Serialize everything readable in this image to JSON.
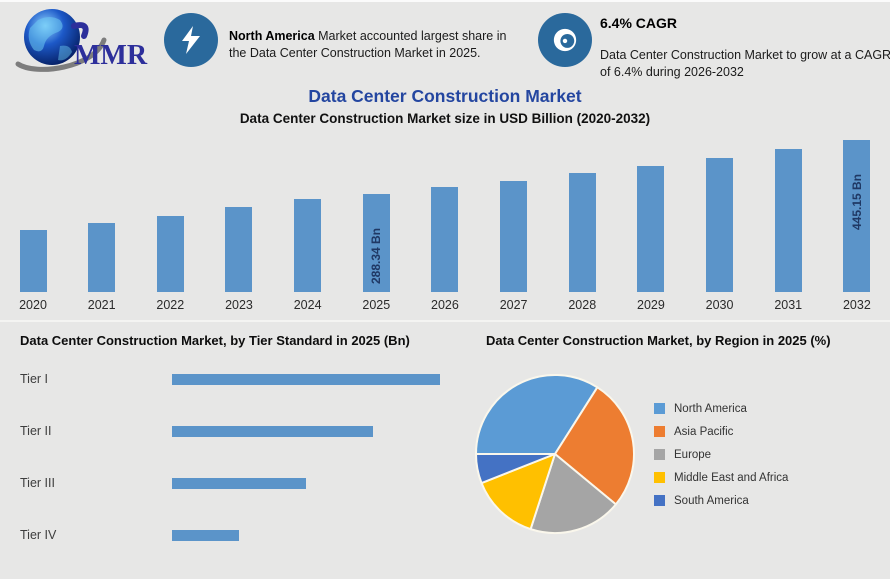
{
  "header": {
    "logo": {
      "text": "MMR"
    },
    "callout_left": {
      "icon": "lightning-icon",
      "bold_text": "North America",
      "text": " Market accounted largest share in the Data Center Construction Market in 2025."
    },
    "callout_right": {
      "icon": "swirl-icon",
      "title": "6.4% CAGR",
      "text": "Data Center Construction Market to grow at a CAGR of 6.4% during 2026-2032"
    }
  },
  "main_title": "Data Center Construction Market",
  "subtitle": "Data Center Construction Market size in USD Billion (2020-2032)",
  "colors": {
    "background": "#e7e7e6",
    "accent_bar_blue": "#5b94c9",
    "title_navy": "#2446a0",
    "data_label_navy": "#1f3864",
    "icon_circle_blue": "#2a699c"
  },
  "chart_data": [
    {
      "type": "bar",
      "title": "Data Center Construction Market size in USD Billion (2020-2032)",
      "categories": [
        "2020",
        "2021",
        "2022",
        "2023",
        "2024",
        "2025",
        "2026",
        "2027",
        "2028",
        "2029",
        "2030",
        "2031",
        "2032"
      ],
      "values": [
        183,
        201,
        224,
        248,
        271,
        288.34,
        306.8,
        326.4,
        347.3,
        369.5,
        393.2,
        418.3,
        445.15
      ],
      "unit": "USD Billion",
      "data_labels": [
        {
          "category": "2025",
          "label": "288.34 Bn"
        },
        {
          "category": "2032",
          "label": "445.15 Bn"
        }
      ],
      "bar_color": "#5b94c9",
      "data_label_color": "#1f3864",
      "ylim": [
        0,
        460
      ],
      "grid": false,
      "legend": false
    },
    {
      "type": "bar",
      "orientation": "horizontal",
      "title": "Data Center Construction Market, by Tier Standard in 2025 (Bn)",
      "categories": [
        "Tier I",
        "Tier II",
        "Tier III",
        "Tier IV"
      ],
      "values": [
        100,
        75,
        50,
        25
      ],
      "values_note": "relative scale, value axis not shown",
      "bar_color": "#5b94c9",
      "grid": false,
      "legend": false
    },
    {
      "type": "pie",
      "title": "Data Center Construction Market, by Region in 2025 (%)",
      "slices": [
        {
          "name": "North America",
          "pct": 34,
          "color": "#5b9bd5"
        },
        {
          "name": "Asia Pacific",
          "pct": 27,
          "color": "#ed7d31"
        },
        {
          "name": "Europe",
          "pct": 19,
          "color": "#a5a5a5"
        },
        {
          "name": "Middle East and Africa",
          "pct": 14,
          "color": "#ffc000"
        },
        {
          "name": "South America",
          "pct": 6,
          "color": "#4472c4"
        }
      ],
      "start_angle_deg": 180,
      "direction": "clockwise",
      "separator_color": "#faf7ec",
      "legend_position": "right"
    }
  ]
}
